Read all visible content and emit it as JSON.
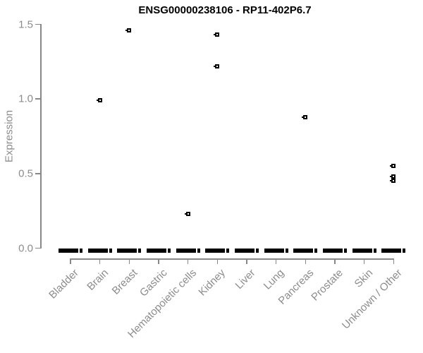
{
  "chart_data": {
    "type": "scatter",
    "subtype": "per-category expression strip/box plot with zero clusters and outlier points",
    "title": "ENSG00000238106 - RP11-402P6.7",
    "xlabel": "",
    "ylabel": "Expression",
    "ylim": [
      0,
      1.5
    ],
    "yticks": [
      "0.0",
      "0.5",
      "1.0",
      "1.5"
    ],
    "grid": false,
    "legend": null,
    "marker": "small-open-square-with-left-dash",
    "colors": {
      "points": "#000000",
      "zero_bar": "#000000",
      "axis": "#888888",
      "tick_labels": "#8c8c8c",
      "title": "#000000",
      "background": "#ffffff"
    },
    "categories": [
      "Bladder",
      "Brain",
      "Breast",
      "Gastric",
      "Hematopoietic cells",
      "Kidney",
      "Liver",
      "Lung",
      "Pancreas",
      "Prostate",
      "Skin",
      "Unknown / Other"
    ],
    "series": [
      {
        "category": "Bladder",
        "zero_cluster": true,
        "outliers": []
      },
      {
        "category": "Brain",
        "zero_cluster": true,
        "outliers": [
          0.99
        ]
      },
      {
        "category": "Breast",
        "zero_cluster": true,
        "outliers": [
          1.46
        ]
      },
      {
        "category": "Gastric",
        "zero_cluster": true,
        "outliers": []
      },
      {
        "category": "Hematopoietic cells",
        "zero_cluster": true,
        "outliers": [
          0.23
        ]
      },
      {
        "category": "Kidney",
        "zero_cluster": true,
        "outliers": [
          1.43,
          1.22
        ]
      },
      {
        "category": "Liver",
        "zero_cluster": true,
        "outliers": []
      },
      {
        "category": "Lung",
        "zero_cluster": true,
        "outliers": []
      },
      {
        "category": "Pancreas",
        "zero_cluster": true,
        "outliers": [
          0.88
        ]
      },
      {
        "category": "Prostate",
        "zero_cluster": true,
        "outliers": []
      },
      {
        "category": "Skin",
        "zero_cluster": true,
        "outliers": []
      },
      {
        "category": "Unknown / Other",
        "zero_cluster": true,
        "outliers": [
          0.55,
          0.48,
          0.45
        ]
      }
    ]
  }
}
